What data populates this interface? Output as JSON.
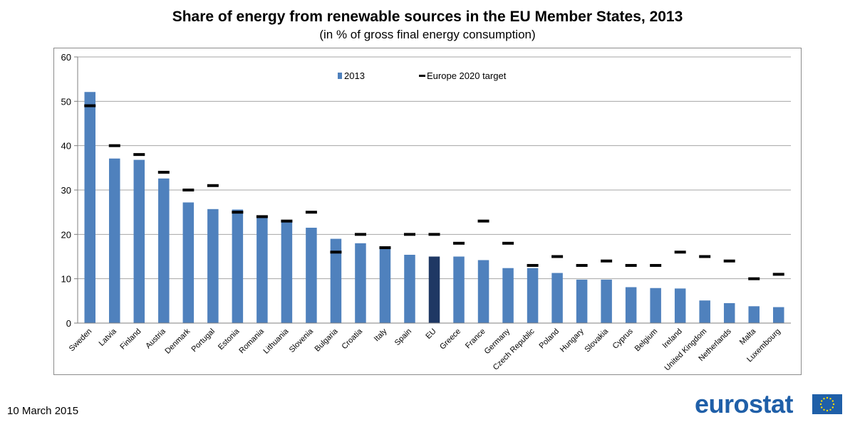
{
  "chart_data": {
    "type": "bar",
    "title": "Share of energy from renewable sources in the EU Member States, 2013",
    "subtitle": "(in % of gross final energy consumption)",
    "ylim": [
      0,
      60
    ],
    "yticks": [
      0,
      10,
      20,
      30,
      40,
      50,
      60
    ],
    "grid": true,
    "legend_position": "top-center",
    "categories": [
      "Sweden",
      "Latvia",
      "Finland",
      "Austria",
      "Denmark",
      "Portugal",
      "Estonia",
      "Romania",
      "Lithuania",
      "Slovenia",
      "Bulgaria",
      "Croatia",
      "Italy",
      "Spain",
      "EU",
      "Greece",
      "France",
      "Germany",
      "Czech Republic",
      "Poland",
      "Hungary",
      "Slovakia",
      "Cyprus",
      "Belgium",
      "Ireland",
      "United Kingdom",
      "Netherlands",
      "Malta",
      "Luxembourg"
    ],
    "series": [
      {
        "name": "2013",
        "kind": "bar",
        "color": "#4f81bd",
        "highlight_category": "EU",
        "highlight_color": "#1f3864",
        "values": [
          52.1,
          37.1,
          36.8,
          32.6,
          27.2,
          25.7,
          25.6,
          23.9,
          23.0,
          21.5,
          19.0,
          18.0,
          16.7,
          15.4,
          15.0,
          15.0,
          14.2,
          12.4,
          12.4,
          11.3,
          9.8,
          9.8,
          8.1,
          7.9,
          7.8,
          5.1,
          4.5,
          3.8,
          3.6
        ]
      },
      {
        "name": "Europe 2020 target",
        "kind": "marker",
        "color": "#000000",
        "values": [
          49,
          40,
          38,
          34,
          30,
          31,
          25,
          24,
          23,
          25,
          16,
          20,
          17,
          20,
          20,
          18,
          23,
          18,
          13,
          15,
          13,
          14,
          13,
          13,
          16,
          15,
          14,
          10,
          11
        ]
      }
    ]
  },
  "footer": {
    "date": "10 March 2015",
    "logo": "eurostat"
  }
}
